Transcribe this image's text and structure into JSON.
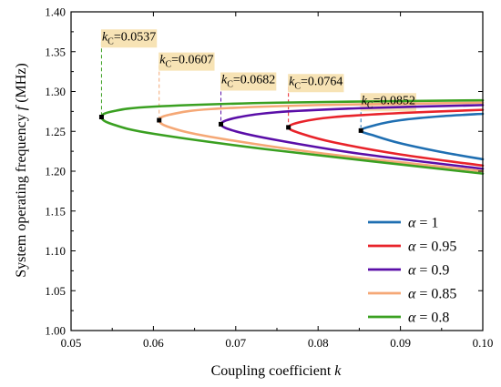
{
  "chart_data": {
    "type": "line",
    "xlabel": "Coupling coefficient",
    "xlabel_var": "k",
    "ylabel": "System operating frequency",
    "ylabel_var": "f",
    "ylabel_unit": "(MHz)",
    "xlim": [
      0.05,
      0.1
    ],
    "ylim": [
      1.0,
      1.4
    ],
    "xticks": [
      0.05,
      0.06,
      0.07,
      0.08,
      0.09,
      0.1
    ],
    "xtick_labels": [
      "0.05",
      "0.06",
      "0.07",
      "0.08",
      "0.09",
      "0.10"
    ],
    "yticks": [
      1.0,
      1.05,
      1.1,
      1.15,
      1.2,
      1.25,
      1.3,
      1.35,
      1.4
    ],
    "ytick_labels": [
      "1.00",
      "1.05",
      "1.10",
      "1.15",
      "1.20",
      "1.25",
      "1.30",
      "1.35",
      "1.40"
    ],
    "grid": false,
    "legend_position": "bottom-right",
    "series": [
      {
        "name": "α = 1",
        "legend_value": "1",
        "color": "#1f6fb2",
        "kc": 0.0852,
        "kc_label": "0.0852",
        "f_bif": 1.251,
        "upper": [
          [
            0.0852,
            1.251
          ],
          [
            0.087,
            1.258
          ],
          [
            0.09,
            1.264
          ],
          [
            0.095,
            1.269
          ],
          [
            0.1,
            1.272
          ]
        ],
        "lower": [
          [
            0.0852,
            1.251
          ],
          [
            0.087,
            1.244
          ],
          [
            0.09,
            1.235
          ],
          [
            0.095,
            1.224
          ],
          [
            0.1,
            1.215
          ]
        ]
      },
      {
        "name": "α = 0.95",
        "legend_value": "0.95",
        "color": "#e8232a",
        "kc": 0.0764,
        "kc_label": "0.0764",
        "f_bif": 1.255,
        "upper": [
          [
            0.0764,
            1.255
          ],
          [
            0.078,
            1.262
          ],
          [
            0.082,
            1.268
          ],
          [
            0.09,
            1.273
          ],
          [
            0.1,
            1.277
          ]
        ],
        "lower": [
          [
            0.0764,
            1.255
          ],
          [
            0.078,
            1.247
          ],
          [
            0.082,
            1.236
          ],
          [
            0.09,
            1.221
          ],
          [
            0.1,
            1.207
          ]
        ]
      },
      {
        "name": "α = 0.9",
        "legend_value": "0.9",
        "color": "#5a0ea8",
        "kc": 0.0682,
        "kc_label": "0.0682",
        "f_bif": 1.259,
        "upper": [
          [
            0.0682,
            1.259
          ],
          [
            0.07,
            1.267
          ],
          [
            0.075,
            1.274
          ],
          [
            0.085,
            1.279
          ],
          [
            0.1,
            1.283
          ]
        ],
        "lower": [
          [
            0.0682,
            1.259
          ],
          [
            0.07,
            1.25
          ],
          [
            0.075,
            1.239
          ],
          [
            0.085,
            1.222
          ],
          [
            0.1,
            1.203
          ]
        ]
      },
      {
        "name": "α = 0.85",
        "legend_value": "0.85",
        "color": "#f5a876",
        "kc": 0.0607,
        "kc_label": "0.0607",
        "f_bif": 1.264,
        "upper": [
          [
            0.0607,
            1.264
          ],
          [
            0.062,
            1.271
          ],
          [
            0.067,
            1.278
          ],
          [
            0.08,
            1.283
          ],
          [
            0.1,
            1.286
          ]
        ],
        "lower": [
          [
            0.0607,
            1.264
          ],
          [
            0.062,
            1.255
          ],
          [
            0.067,
            1.243
          ],
          [
            0.08,
            1.223
          ],
          [
            0.1,
            1.2
          ]
        ]
      },
      {
        "name": "α = 0.8",
        "legend_value": "0.8",
        "color": "#3aa021",
        "kc": 0.0537,
        "kc_label": "0.0537",
        "f_bif": 1.268,
        "upper": [
          [
            0.0537,
            1.268
          ],
          [
            0.055,
            1.275
          ],
          [
            0.06,
            1.281
          ],
          [
            0.075,
            1.286
          ],
          [
            0.1,
            1.289
          ]
        ],
        "lower": [
          [
            0.0537,
            1.268
          ],
          [
            0.055,
            1.259
          ],
          [
            0.06,
            1.247
          ],
          [
            0.075,
            1.226
          ],
          [
            0.1,
            1.197
          ]
        ]
      }
    ],
    "annotations": [
      {
        "series": 4,
        "prefix": "k",
        "sub": "C",
        "text": "=0.0537",
        "label_f": 1.37
      },
      {
        "series": 3,
        "prefix": "k",
        "sub": "C",
        "text": "=0.0607",
        "label_f": 1.341
      },
      {
        "series": 2,
        "prefix": "k",
        "sub": "C",
        "text": "=0.0682",
        "label_f": 1.316
      },
      {
        "series": 1,
        "prefix": "k",
        "sub": "C",
        "text": "=0.0764",
        "label_f": 1.314
      },
      {
        "series": 0,
        "prefix": "k",
        "sub": "C",
        "text": "=0.0852",
        "label_f": 1.29
      }
    ],
    "label_bg": "#f7e3b5"
  }
}
